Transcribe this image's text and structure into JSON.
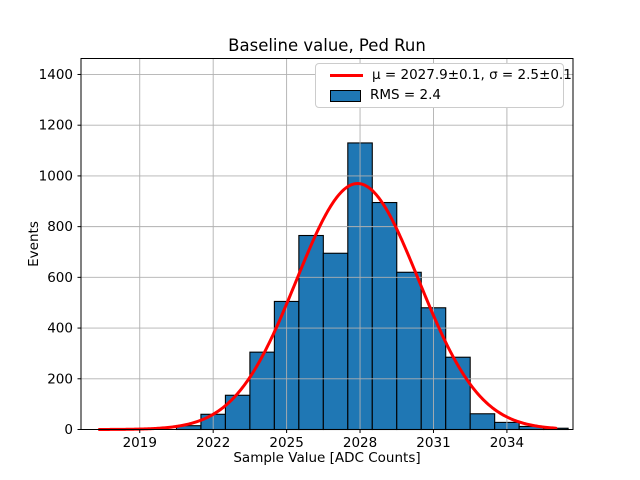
{
  "figure": {
    "title": "Baseline value, Ped Run",
    "xlabel": "Sample Value [ADC Counts]",
    "ylabel": "Events"
  },
  "legend": {
    "entries": [
      {
        "label": "μ = 2027.9±0.1, σ = 2.5±0.1",
        "swatch": "fit-line"
      },
      {
        "label": "RMS = 2.4",
        "swatch": "histogram-patch"
      }
    ]
  },
  "colors": {
    "histogram_fill": "#1f77b4",
    "histogram_edge": "#000000",
    "fit_line": "#ff0000",
    "grid": "#b0b0b0",
    "spine": "#000000",
    "legend_border": "#cccccc",
    "text": "#000000"
  },
  "chart_data": {
    "type": "bar",
    "subtype": "histogram-with-gaussian-fit",
    "title": "Baseline value, Ped Run",
    "xlabel": "Sample Value [ADC Counts]",
    "ylabel": "Events",
    "bin_centers": [
      2021,
      2022,
      2023,
      2024,
      2025,
      2026,
      2027,
      2028,
      2029,
      2030,
      2031,
      2032,
      2033,
      2034,
      2035,
      2036
    ],
    "bin_width": 1,
    "values": [
      15,
      60,
      135,
      305,
      505,
      765,
      695,
      1130,
      895,
      620,
      480,
      285,
      62,
      28,
      12,
      5
    ],
    "gaussian_fit": {
      "mu": 2027.9,
      "mu_err": 0.1,
      "sigma": 2.5,
      "sigma_err": 0.1,
      "amplitude": 970,
      "x_start": 2017.35,
      "x_end": 2036.0
    },
    "rms": 2.4,
    "xlim": [
      2016.6,
      2036.7
    ],
    "ylim": [
      0,
      1463
    ],
    "xticks": [
      2019,
      2022,
      2025,
      2028,
      2031,
      2034
    ],
    "yticks": [
      0,
      200,
      400,
      600,
      800,
      1000,
      1200,
      1400
    ],
    "grid": true,
    "legend_position": "upper right"
  }
}
